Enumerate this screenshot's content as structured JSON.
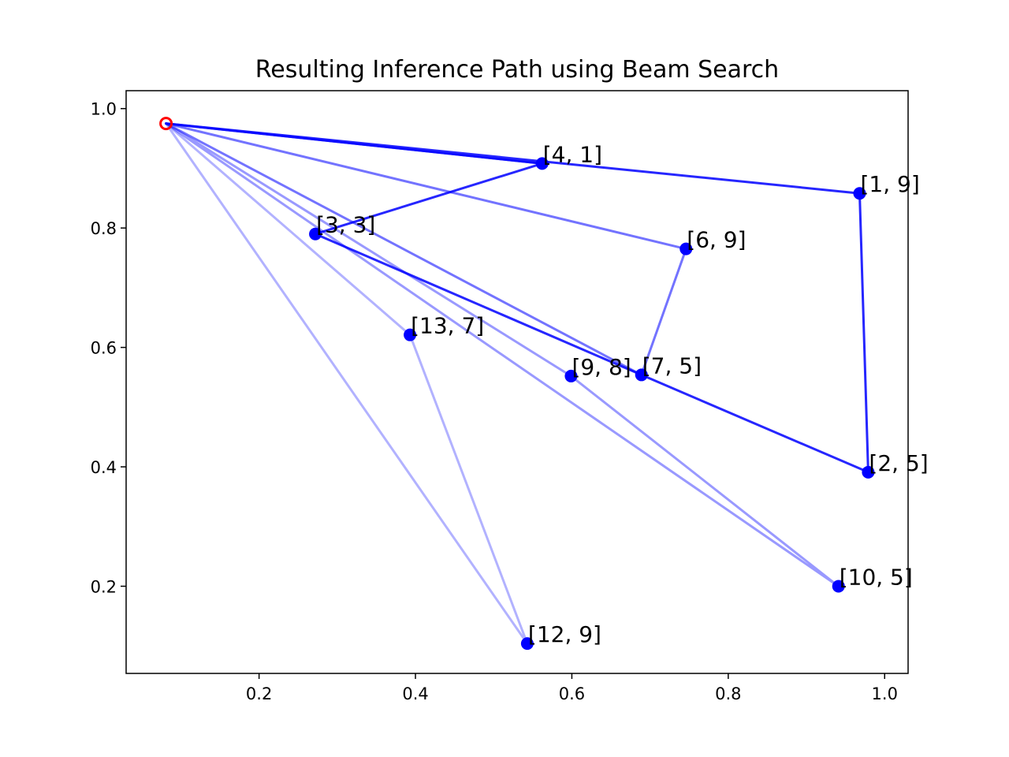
{
  "chart_data": {
    "type": "line",
    "title": "Resulting Inference Path using Beam Search",
    "xlabel": "",
    "ylabel": "",
    "xlim": [
      0.03,
      1.03
    ],
    "ylim": [
      0.054,
      1.03
    ],
    "xticks": [
      0.2,
      0.4,
      0.6,
      0.8,
      1.0
    ],
    "yticks": [
      0.2,
      0.4,
      0.6,
      0.8,
      1.0
    ],
    "xtick_labels": [
      "0.2",
      "0.4",
      "0.6",
      "0.8",
      "1.0"
    ],
    "ytick_labels": [
      "0.2",
      "0.4",
      "0.6",
      "0.8",
      "1.0"
    ],
    "grid": false,
    "start": {
      "x": 0.081,
      "y": 0.975,
      "color": "#ff0000"
    },
    "points": [
      {
        "label": "[4, 1]",
        "x": 0.562,
        "y": 0.908
      },
      {
        "label": "[1, 9]",
        "x": 0.968,
        "y": 0.858
      },
      {
        "label": "[3, 3]",
        "x": 0.272,
        "y": 0.79
      },
      {
        "label": "[6, 9]",
        "x": 0.746,
        "y": 0.765
      },
      {
        "label": "[13, 7]",
        "x": 0.393,
        "y": 0.621
      },
      {
        "label": "[9, 8]",
        "x": 0.599,
        "y": 0.552
      },
      {
        "label": "[7, 5]",
        "x": 0.689,
        "y": 0.554
      },
      {
        "label": "[2, 5]",
        "x": 0.979,
        "y": 0.391
      },
      {
        "label": "[10, 5]",
        "x": 0.941,
        "y": 0.2
      },
      {
        "label": "[12, 9]",
        "x": 0.543,
        "y": 0.104
      }
    ],
    "paths": [
      {
        "nodes": [
          "start",
          "[4, 1]",
          "[3, 3]",
          "[7, 5]",
          "[2, 5]",
          "[1, 9]",
          "start"
        ],
        "opacity": 0.85
      },
      {
        "nodes": [
          "start",
          "[4, 1]"
        ],
        "opacity": 0.7
      },
      {
        "nodes": [
          "start",
          "[6, 9]",
          "[7, 5]",
          "start"
        ],
        "opacity": 0.55
      },
      {
        "nodes": [
          "start",
          "[9, 8]",
          "[10, 5]",
          "start"
        ],
        "opacity": 0.4
      },
      {
        "nodes": [
          "start",
          "[13, 7]",
          "[12, 9]",
          "start"
        ],
        "opacity": 0.3
      }
    ],
    "colors": {
      "line": "#0000ff",
      "point": "#0000ff",
      "start": "#ff0000",
      "axes": "#000000"
    }
  }
}
